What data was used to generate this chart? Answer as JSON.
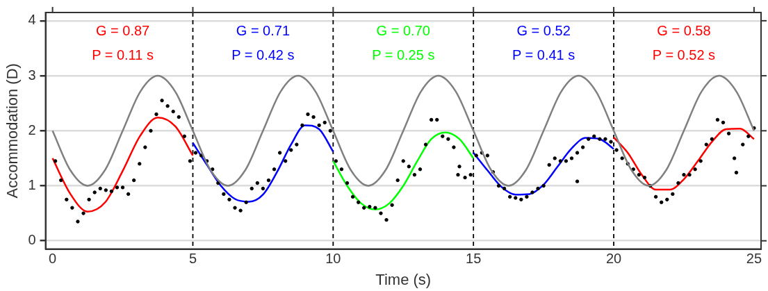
{
  "chart_data": {
    "type": "line",
    "xlabel": "Time (s)",
    "ylabel": "Accommodation (D)",
    "xlim": [
      -0.25,
      25.25
    ],
    "ylim": [
      -0.15,
      4.15
    ],
    "xticks": [
      0,
      5,
      10,
      15,
      20,
      25
    ],
    "yticks": [
      0,
      1,
      2,
      3,
      4
    ],
    "grid": "y",
    "legend": false,
    "line_style": "solid",
    "ref_lines": [
      {
        "axis": "x",
        "value": 5,
        "line_style": "dashed",
        "color": "#000000"
      },
      {
        "axis": "x",
        "value": 10,
        "line_style": "dashed",
        "color": "#000000"
      },
      {
        "axis": "x",
        "value": 15,
        "line_style": "dashed",
        "color": "#000000"
      },
      {
        "axis": "x",
        "value": 20,
        "line_style": "dashed",
        "color": "#000000"
      }
    ],
    "annotations": [
      "G = 0.87",
      "P = 0.11 s",
      "G = 0.71",
      "P = 0.42 s",
      "G = 0.70",
      "P = 0.25 s",
      "G = 0.52",
      "P = 0.41 s",
      "G = 0.58",
      "P = 0.52 s"
    ],
    "series": [
      {
        "color": "#808080",
        "x": [
          0,
          0.625,
          1.25,
          1.875,
          2.5,
          3.125,
          3.75,
          4.375,
          5,
          5.625,
          6.25,
          6.875,
          7.5,
          8.125,
          8.75,
          9.375,
          10,
          10.625,
          11.25,
          11.875,
          12.5,
          13.125,
          13.75,
          14.375,
          15,
          15.625,
          16.25,
          16.875,
          17.5,
          18.125,
          18.75,
          19.375,
          20,
          20.625,
          21.25,
          21.875,
          22.5,
          23.125,
          23.75,
          24.375,
          25
        ],
        "values": [
          2,
          1.29,
          1,
          1.29,
          2,
          2.71,
          3,
          2.71,
          2,
          1.29,
          1,
          1.29,
          2,
          2.71,
          3,
          2.71,
          2,
          1.29,
          1,
          1.29,
          2,
          2.71,
          3,
          2.71,
          2,
          1.29,
          1,
          1.29,
          2,
          2.71,
          3,
          2.71,
          2,
          1.29,
          1,
          1.29,
          2,
          2.71,
          3,
          2.71,
          2
        ]
      },
      {
        "type": "scatter",
        "marker": "circle",
        "color": "#000000",
        "x": [
          0.1,
          0.3,
          0.5,
          0.7,
          0.9,
          1.1,
          1.3,
          1.5,
          1.7,
          1.9,
          2.1,
          2.3,
          2.5,
          2.7,
          2.9,
          3.1,
          3.3,
          3.5,
          3.7,
          3.9,
          4.1,
          4.3,
          4.5,
          4.7,
          4.9,
          5.1,
          5.3,
          5.5,
          5.7,
          5.9,
          6.1,
          6.3,
          6.5,
          6.7,
          6.9,
          7.1,
          7.3,
          7.5,
          7.7,
          7.9,
          8.1,
          8.3,
          8.5,
          8.7,
          8.9,
          9.1,
          9.3,
          9.5,
          9.7,
          9.9,
          10.1,
          10.3,
          10.5,
          10.7,
          10.9,
          11.1,
          11.3,
          11.5,
          11.7,
          11.9,
          12.1,
          12.3,
          12.5,
          12.7,
          12.9,
          13.1,
          13.3,
          13.5,
          13.7,
          13.9,
          14.1,
          14.3,
          14.45,
          14.5,
          14.7,
          14.9,
          15.1,
          15.3,
          15.5,
          15.7,
          15.9,
          16.1,
          16.3,
          16.5,
          16.7,
          16.9,
          17.1,
          17.3,
          17.5,
          17.7,
          17.9,
          18.1,
          18.3,
          18.5,
          18.7,
          18.7,
          18.9,
          19.1,
          19.3,
          19.5,
          19.7,
          19.9,
          20.1,
          20.3,
          20.5,
          20.7,
          20.9,
          21.1,
          21.3,
          21.5,
          21.7,
          21.9,
          22.1,
          22.3,
          22.5,
          22.7,
          22.9,
          23.1,
          23.3,
          23.5,
          23.7,
          23.9,
          24.1,
          24.3,
          24.37,
          24.6,
          24.8,
          25
        ],
        "values": [
          1.45,
          1.1,
          0.75,
          0.6,
          0.35,
          0.5,
          0.75,
          0.88,
          0.95,
          0.92,
          0.9,
          0.97,
          0.97,
          0.85,
          1.1,
          1.4,
          1.7,
          2,
          2.3,
          2.55,
          2.45,
          2.35,
          2.25,
          1.9,
          1.45,
          1.6,
          1.55,
          1.45,
          1.3,
          1.05,
          0.85,
          0.75,
          0.6,
          0.55,
          0.7,
          0.95,
          1.05,
          0.95,
          1.1,
          1.3,
          1.6,
          1.45,
          1.65,
          1.75,
          2.1,
          2.3,
          2.25,
          2.1,
          2.15,
          2,
          1.45,
          1.3,
          1.05,
          0.8,
          0.7,
          0.6,
          0.62,
          0.6,
          0.5,
          0.38,
          0.65,
          1.1,
          1.45,
          1.35,
          1.2,
          1.3,
          1.75,
          2.2,
          2.2,
          1.9,
          1.85,
          1.7,
          1.2,
          1.35,
          1.15,
          1.2,
          1.55,
          1.6,
          1.55,
          1.25,
          1,
          0.95,
          0.8,
          0.78,
          0.75,
          0.8,
          0.88,
          0.95,
          1,
          1.38,
          1.5,
          1.45,
          1.45,
          1.5,
          1.6,
          1.08,
          1.7,
          1.85,
          1.9,
          1.85,
          1.85,
          1.8,
          1.65,
          1.5,
          1.4,
          1.3,
          1.2,
          1.15,
          1,
          0.8,
          0.7,
          0.75,
          0.85,
          1.05,
          1.2,
          1.2,
          1.3,
          1.45,
          1.75,
          1.85,
          2.2,
          2.15,
          1.95,
          1.5,
          1.24,
          1.75,
          1.9,
          2.05
        ]
      },
      {
        "color": "#ff0000",
        "x": [
          0,
          0.625,
          1.25,
          1.875,
          2.5,
          3.125,
          3.75,
          4.375,
          5
        ],
        "values": [
          1.5,
          0.86,
          0.53,
          0.7,
          1.27,
          1.91,
          2.24,
          2.08,
          1.55
        ]
      },
      {
        "color": "#0000ff",
        "x": [
          5,
          5.5,
          6,
          6.5,
          7,
          7.5,
          8,
          8.5,
          9,
          9.5,
          10
        ],
        "values": [
          1.78,
          1.38,
          1,
          0.76,
          0.71,
          0.84,
          1.25,
          1.75,
          2.1,
          2.03,
          1.62
        ]
      },
      {
        "color": "#00ff00",
        "x": [
          10,
          10.5,
          11,
          11.5,
          12,
          12.5,
          13,
          13.5,
          14,
          14.5,
          15
        ],
        "values": [
          1.45,
          1,
          0.68,
          0.57,
          0.68,
          1,
          1.45,
          1.85,
          1.97,
          1.85,
          1.5
        ]
      },
      {
        "color": "#0000ff",
        "x": [
          15,
          15.5,
          16,
          16.5,
          17,
          17.5,
          18,
          18.5,
          19,
          19.5,
          20
        ],
        "values": [
          1.6,
          1.28,
          0.98,
          0.84,
          0.85,
          1.02,
          1.35,
          1.68,
          1.87,
          1.85,
          1.67
        ]
      },
      {
        "color": "#ff0000",
        "x": [
          20,
          20.5,
          21,
          21.5,
          22,
          22.5,
          23,
          23.5,
          24,
          24.5,
          25
        ],
        "values": [
          1.88,
          1.6,
          1.2,
          0.93,
          0.93,
          1.12,
          1.45,
          1.8,
          2.03,
          2.04,
          1.85
        ]
      }
    ]
  }
}
